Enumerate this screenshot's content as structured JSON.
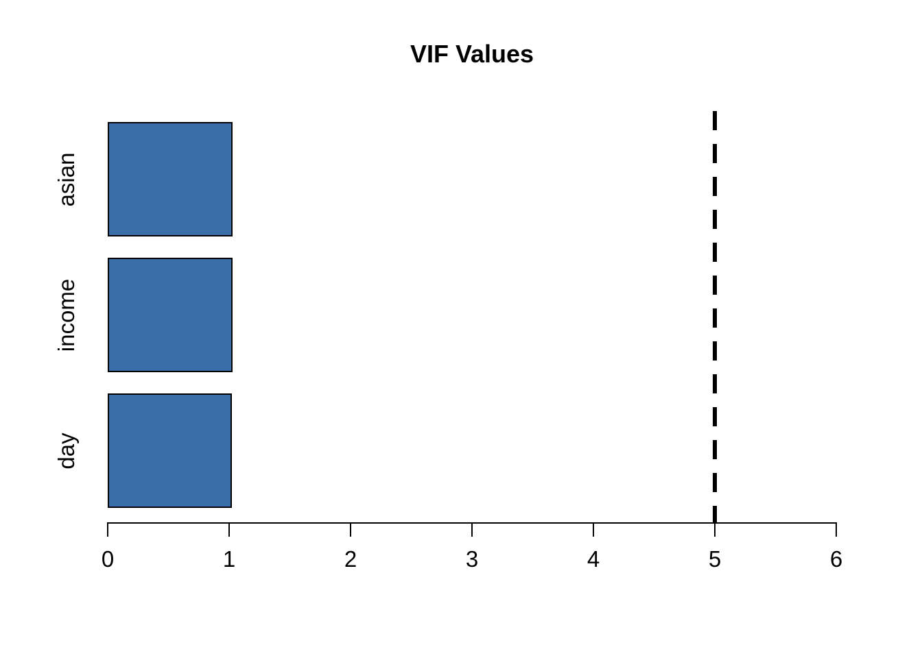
{
  "title": "VIF Values",
  "chart_data": {
    "type": "bar",
    "orientation": "horizontal",
    "title": "VIF Values",
    "xlabel": "",
    "ylabel": "",
    "categories": [
      "asian",
      "income",
      "day"
    ],
    "values": [
      1.03,
      1.03,
      1.02
    ],
    "xlim": [
      0,
      6
    ],
    "x_ticks": [
      "0",
      "1",
      "2",
      "3",
      "4",
      "5",
      "6"
    ],
    "threshold_line": {
      "x": 5,
      "style": "dashed",
      "color": "#000000"
    },
    "bar_color": "#3A6EA8",
    "bar_border_color": "#000000",
    "axis_color": "#000000",
    "background": "#FFFFFF",
    "grid": false,
    "legend": false
  }
}
